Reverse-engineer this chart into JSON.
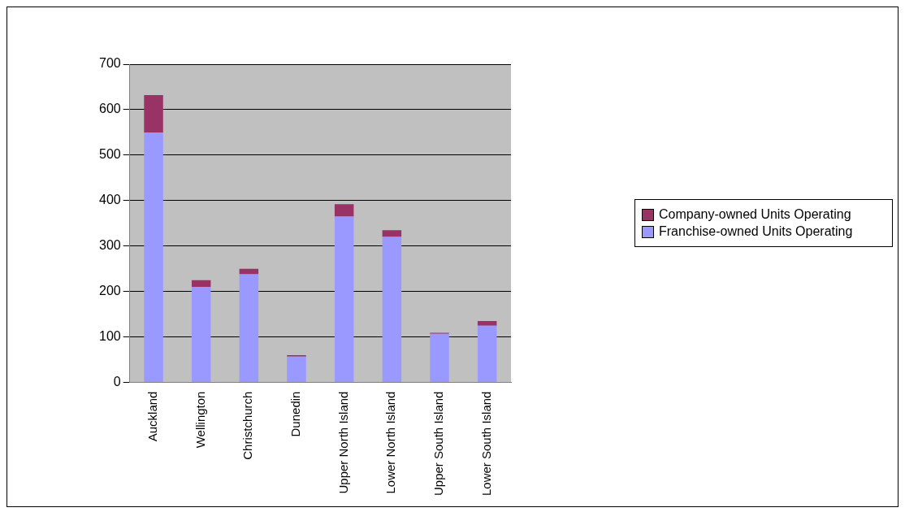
{
  "chart_data": {
    "type": "bar",
    "stacked": true,
    "categories": [
      "Auckland",
      "Wellington",
      "Christchurch",
      "Dunedin",
      "Upper North Island",
      "Lower North Island",
      "Upper South Island",
      "Lower South Island"
    ],
    "series": [
      {
        "name": "Franchise-owned Units Operating",
        "color": "#9999ff",
        "values": [
          550,
          210,
          238,
          57,
          365,
          320,
          107,
          125
        ]
      },
      {
        "name": "Company-owned Units Operating",
        "color": "#993366",
        "values": [
          82,
          15,
          12,
          3,
          27,
          15,
          2,
          10
        ]
      }
    ],
    "ylim": [
      0,
      700
    ],
    "yticks": [
      0,
      100,
      200,
      300,
      400,
      500,
      600,
      700
    ],
    "grid": "y",
    "legend": "right"
  }
}
